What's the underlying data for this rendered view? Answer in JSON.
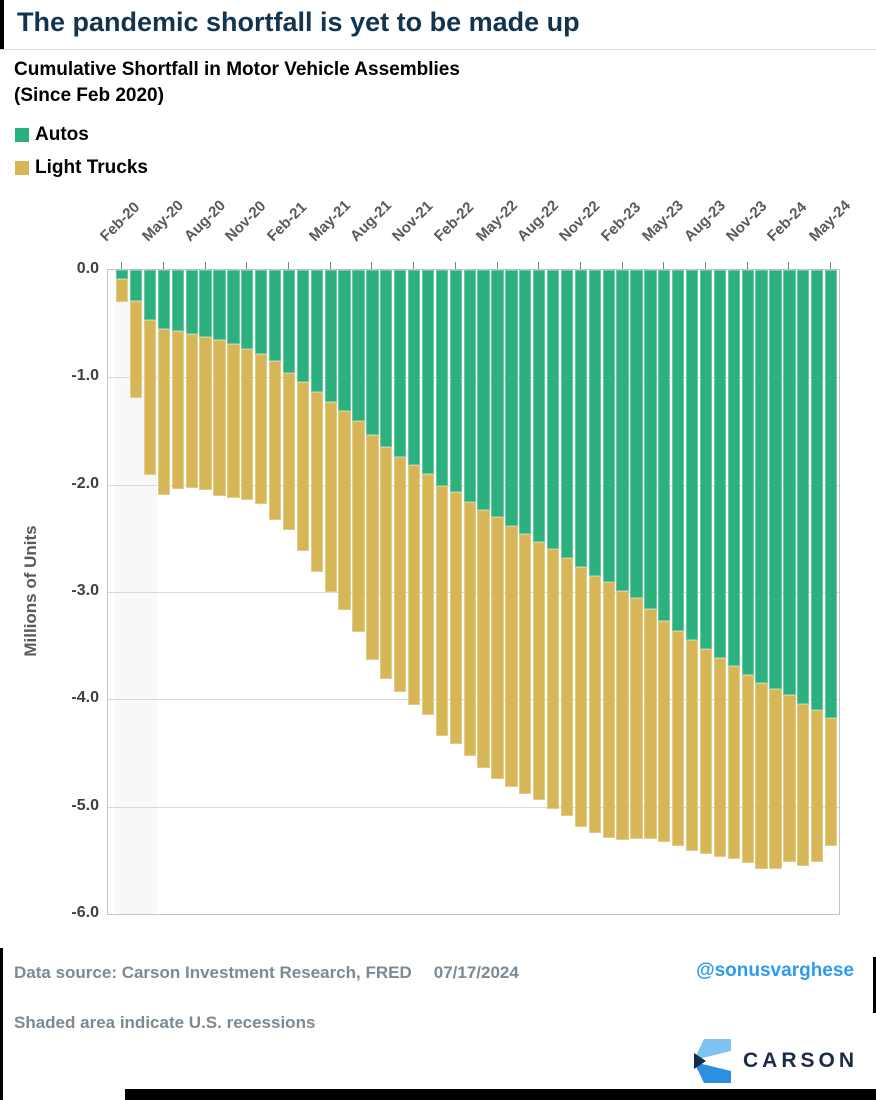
{
  "header": {
    "title": "The pandemic shortfall is yet to be made up"
  },
  "chart_data": {
    "type": "bar",
    "stacked": true,
    "orientation": "vertical-negative",
    "title": "Cumulative Shortfall in Motor Vehicle Assemblies",
    "subtitle": "(Since Feb 2020)",
    "xlabel": "",
    "ylabel": "Millions of Units",
    "ylim": [
      -6.0,
      0.0
    ],
    "ytick_labels": [
      "0.0",
      "-1.0",
      "-2.0",
      "-3.0",
      "-4.0",
      "-5.0",
      "-6.0"
    ],
    "grid": true,
    "legend_position": "top-left",
    "x_tick_every": 3,
    "categories": [
      "Feb-20",
      "Mar-20",
      "Apr-20",
      "May-20",
      "Jun-20",
      "Jul-20",
      "Aug-20",
      "Sep-20",
      "Oct-20",
      "Nov-20",
      "Dec-20",
      "Jan-21",
      "Feb-21",
      "Mar-21",
      "Apr-21",
      "May-21",
      "Jun-21",
      "Jul-21",
      "Aug-21",
      "Sep-21",
      "Oct-21",
      "Nov-21",
      "Dec-21",
      "Jan-22",
      "Feb-22",
      "Mar-22",
      "Apr-22",
      "May-22",
      "Jun-22",
      "Jul-22",
      "Aug-22",
      "Sep-22",
      "Oct-22",
      "Nov-22",
      "Dec-22",
      "Jan-23",
      "Feb-23",
      "Mar-23",
      "Apr-23",
      "May-23",
      "Jun-23",
      "Jul-23",
      "Aug-23",
      "Sep-23",
      "Oct-23",
      "Nov-23",
      "Dec-23",
      "Jan-24",
      "Feb-24",
      "Mar-24",
      "Apr-24",
      "May-24"
    ],
    "series": [
      {
        "name": "Autos",
        "color": "#2BB07E",
        "values": [
          -0.08,
          -0.29,
          -0.47,
          -0.55,
          -0.57,
          -0.6,
          -0.62,
          -0.65,
          -0.69,
          -0.74,
          -0.78,
          -0.85,
          -0.96,
          -1.04,
          -1.14,
          -1.23,
          -1.31,
          -1.41,
          -1.54,
          -1.65,
          -1.74,
          -1.82,
          -1.9,
          -2.01,
          -2.07,
          -2.16,
          -2.24,
          -2.3,
          -2.38,
          -2.46,
          -2.53,
          -2.6,
          -2.68,
          -2.77,
          -2.85,
          -2.91,
          -2.99,
          -3.06,
          -3.16,
          -3.27,
          -3.36,
          -3.45,
          -3.53,
          -3.61,
          -3.69,
          -3.77,
          -3.85,
          -3.9,
          -3.96,
          -4.04,
          -4.1,
          -4.17
        ]
      },
      {
        "name": "Light Trucks",
        "color": "#D6B656",
        "values": [
          -0.22,
          -0.9,
          -1.44,
          -1.55,
          -1.47,
          -1.43,
          -1.43,
          -1.46,
          -1.43,
          -1.4,
          -1.4,
          -1.48,
          -1.46,
          -1.58,
          -1.67,
          -1.77,
          -1.86,
          -1.96,
          -2.09,
          -2.16,
          -2.19,
          -2.23,
          -2.25,
          -2.33,
          -2.35,
          -2.37,
          -2.4,
          -2.44,
          -2.44,
          -2.42,
          -2.41,
          -2.42,
          -2.41,
          -2.42,
          -2.4,
          -2.38,
          -2.32,
          -2.24,
          -2.14,
          -2.06,
          -2.01,
          -1.96,
          -1.91,
          -1.86,
          -1.8,
          -1.76,
          -1.73,
          -1.68,
          -1.56,
          -1.51,
          -1.42,
          -1.2
        ]
      }
    ],
    "recession_months": [
      "Feb-20",
      "Mar-20",
      "Apr-20"
    ]
  },
  "footer": {
    "data_source": "Data source: Carson Investment Research, FRED",
    "date": "07/17/2024",
    "handle": "@sonusvarghese",
    "footnote": "Shaded area indicate U.S. recessions",
    "logo_text": "CARSON"
  },
  "colors": {
    "title_navy": "#13344F",
    "autos_green": "#2BB07E",
    "trucks_gold": "#D6B656",
    "handle_blue": "#2D9BF0",
    "footer_gray": "#7b8a94",
    "logo_navy": "#1B2B4A",
    "logo_light_blue": "#7EC3F2",
    "logo_mid_blue": "#2D8FE2"
  }
}
